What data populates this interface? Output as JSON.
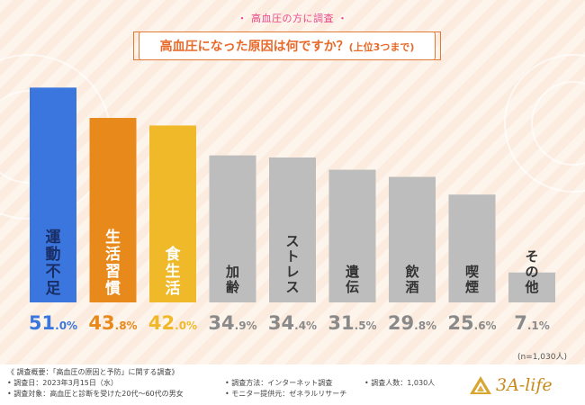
{
  "header": {
    "survey_label": "・ 高血圧の方に調査 ・",
    "title_main": "高血圧になった原因は何ですか？",
    "title_sub": "(上位3つまで)"
  },
  "chart_data": {
    "type": "bar",
    "title": "高血圧になった原因は何ですか？(上位3つまで)",
    "categories": [
      "運動不足",
      "生活習慣",
      "食生活",
      "加齢",
      "ストレス",
      "遺伝",
      "飲酒",
      "喫煙",
      "その他"
    ],
    "values": [
      51.0,
      43.8,
      42.0,
      34.9,
      34.4,
      31.5,
      29.8,
      25.6,
      7.1
    ],
    "value_labels": [
      {
        "num": "51",
        "dec": ".0%"
      },
      {
        "num": "43",
        "dec": ".8%"
      },
      {
        "num": "42",
        "dec": ".0%"
      },
      {
        "num": "34",
        "dec": ".9%"
      },
      {
        "num": "34",
        "dec": ".4%"
      },
      {
        "num": "31",
        "dec": ".5%"
      },
      {
        "num": "29",
        "dec": ".8%"
      },
      {
        "num": "25",
        "dec": ".6%"
      },
      {
        "num": "7",
        "dec": ".1%"
      }
    ],
    "colors": [
      "#3b76de",
      "#e8891c",
      "#efb929",
      "#bdbdbd",
      "#bdbdbd",
      "#bdbdbd",
      "#bdbdbd",
      "#bdbdbd",
      "#bdbdbd"
    ],
    "value_colors": [
      "#3b76de",
      "#e8891c",
      "#efb929",
      "#8a8a8a",
      "#8a8a8a",
      "#8a8a8a",
      "#8a8a8a",
      "#8a8a8a",
      "#8a8a8a"
    ],
    "label_colors": [
      "#1a2e66",
      "#ffffff",
      "#ffffff",
      "#333333",
      "#333333",
      "#333333",
      "#333333",
      "#333333",
      "#333333"
    ],
    "ylim": [
      0,
      55
    ],
    "grid": false,
    "legend": "none"
  },
  "sample_note": "(n=1,030人)",
  "footer": {
    "line1": "《 調査概要：「高血圧の原因と予防」に関する調査》",
    "line2": "• 調査日：2023年3月15日（水）",
    "line3": "• 調査対象：高血圧と診断を受けた20代〜60代の男女",
    "method": "• 調査方法：インターネット調査",
    "monitor": "• モニター提供元：ゼネラルリサーチ",
    "count": "• 調査人数：1,030人"
  },
  "logo": {
    "text": "3A-life",
    "color": "#c98a1a"
  }
}
